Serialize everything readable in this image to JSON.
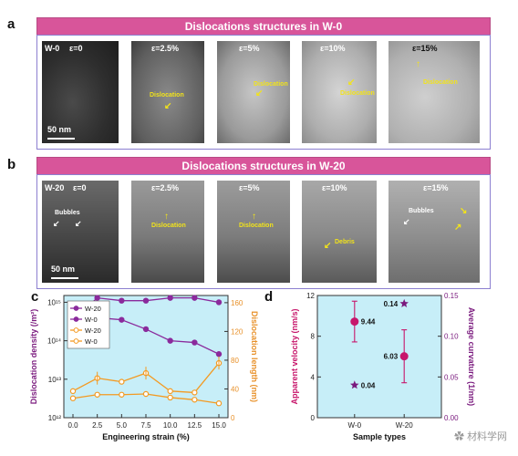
{
  "panel_a": {
    "letter": "a",
    "title": "Dislocations structures in W-0",
    "sample_label": "W-0",
    "strains": [
      "ε=0",
      "ε=2.5%",
      "ε=5%",
      "ε=10%",
      "ε=15%"
    ],
    "annotation": "Dislocation",
    "scale": "50 nm"
  },
  "panel_b": {
    "letter": "b",
    "title": "Dislocations structures in W-20",
    "sample_label": "W-20",
    "strains": [
      "ε=0",
      "ε=2.5%",
      "ε=5%",
      "ε=10%",
      "ε=15%"
    ],
    "bubbles": "Bubbles",
    "dislocation": "Dislocation",
    "debris": "Debris",
    "scale": "50 nm"
  },
  "panel_c": {
    "letter": "c",
    "chart_data": {
      "type": "line",
      "x": [
        0.0,
        2.5,
        5.0,
        7.5,
        10.0,
        12.5,
        15.0
      ],
      "xticks": [
        "0.0",
        "2.5",
        "5.0",
        "7.5",
        "10.0",
        "12.5",
        "15.0"
      ],
      "xlabel": "Engineering strain (%)",
      "ylabel_left": "Dislocation density (/m²)",
      "ylabel_right": "Dislocation length (nm)",
      "yleft_log": true,
      "yleft_range": [
        1000000000000.0,
        1500000000000000.0
      ],
      "yleft_ticks": [
        "10¹²",
        "10¹³",
        "10¹⁴",
        "10¹⁵"
      ],
      "yright_range": [
        0,
        170
      ],
      "yright_ticks": [
        "0",
        "40",
        "80",
        "120",
        "160"
      ],
      "series": [
        {
          "name": "W-20",
          "axis": "left",
          "color": "#8a2a9c",
          "marker": "filled",
          "values": [
            350000000000000.0,
            1300000000000000.0,
            1100000000000000.0,
            1100000000000000.0,
            1300000000000000.0,
            1300000000000000.0,
            1000000000000000.0
          ]
        },
        {
          "name": "W-0",
          "axis": "left",
          "color": "#8a2a9c",
          "marker": "filled",
          "values": [
            350000000000000.0,
            400000000000000.0,
            350000000000000.0,
            200000000000000.0,
            100000000000000.0,
            90000000000000.0,
            45000000000000.0
          ]
        },
        {
          "name": "W-20",
          "axis": "right",
          "color": "#f39a22",
          "marker": "open",
          "values": [
            37,
            55,
            50,
            62,
            37,
            35,
            76
          ]
        },
        {
          "name": "W-0",
          "axis": "right",
          "color": "#f39a22",
          "marker": "open",
          "values": [
            27,
            32,
            32,
            33,
            28,
            25,
            20
          ]
        }
      ]
    }
  },
  "panel_d": {
    "letter": "d",
    "chart_data": {
      "type": "scatter",
      "categories": [
        "W-0",
        "W-20"
      ],
      "xlabel": "Sample types",
      "ylabel_left": "Apparent velocity (nm/s)",
      "ylabel_right": "Average curvature (1/nm)",
      "yleft_range": [
        0,
        12
      ],
      "yleft_ticks": [
        "0",
        "4",
        "8",
        "12"
      ],
      "yright_range": [
        0,
        0.15
      ],
      "yright_ticks": [
        "0.00",
        "0.05",
        "0.10",
        "0.15"
      ],
      "velocity": {
        "values": [
          9.44,
          6.03
        ],
        "errors": [
          2.0,
          2.6
        ],
        "labels": [
          "9.44",
          "6.03"
        ],
        "color": "#c7166b"
      },
      "curvature": {
        "values": [
          0.04,
          0.14
        ],
        "labels": [
          "0.04",
          "0.14"
        ],
        "color": "#7a1a7e"
      }
    }
  },
  "watermark": "材料学网"
}
